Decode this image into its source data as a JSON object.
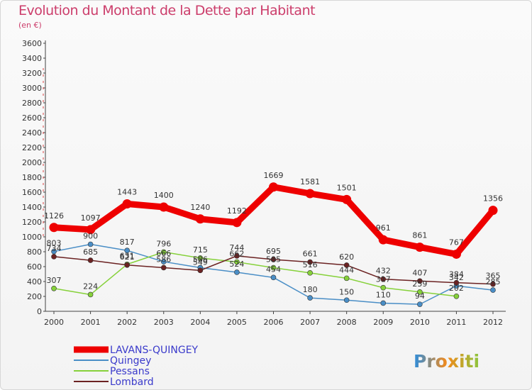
{
  "header": {
    "title": "Evolution du Montant de la Dette par Habitant",
    "subtitle": "(en €)"
  },
  "logo_text": "Proxiti",
  "colors": {
    "title": "#cc3d6b",
    "LAVANS-QUINGEY": "#ee0000",
    "Quingey": "#4a8ec6",
    "Pessans": "#86d13a",
    "Lombard": "#6b2222"
  },
  "chart_data": {
    "type": "line",
    "title": "Evolution du Montant de la Dette par Habitant",
    "subtitle": "(en €)",
    "xlabel": "",
    "ylabel": "",
    "x": [
      "2000",
      "2001",
      "2002",
      "2003",
      "2004",
      "2005",
      "2006",
      "2007",
      "2008",
      "2009",
      "2010",
      "2011",
      "2012"
    ],
    "ylim": [
      0,
      3600
    ],
    "yticks": [
      0,
      200,
      400,
      600,
      800,
      1000,
      1200,
      1400,
      1600,
      1800,
      2000,
      2200,
      2400,
      2600,
      2800,
      3000,
      3200,
      3400,
      3600
    ],
    "grid": false,
    "legend": "bottom-left",
    "series": [
      {
        "name": "LAVANS-QUINGEY",
        "values": [
          1126,
          1097,
          1443,
          1400,
          1240,
          1192,
          1669,
          1581,
          1501,
          961,
          861,
          767,
          1356
        ]
      },
      {
        "name": "Quingey",
        "values": [
          803,
          900,
          817,
          666,
          586,
          524,
          454,
          180,
          150,
          110,
          94,
          342,
          285
        ]
      },
      {
        "name": "Pessans",
        "values": [
          307,
          224,
          631,
          796,
          715,
          662,
          585,
          516,
          444,
          317,
          259,
          202,
          null
        ]
      },
      {
        "name": "Lombard",
        "values": [
          734,
          685,
          621,
          586,
          549,
          744,
          695,
          661,
          620,
          432,
          407,
          384,
          365
        ]
      }
    ]
  }
}
